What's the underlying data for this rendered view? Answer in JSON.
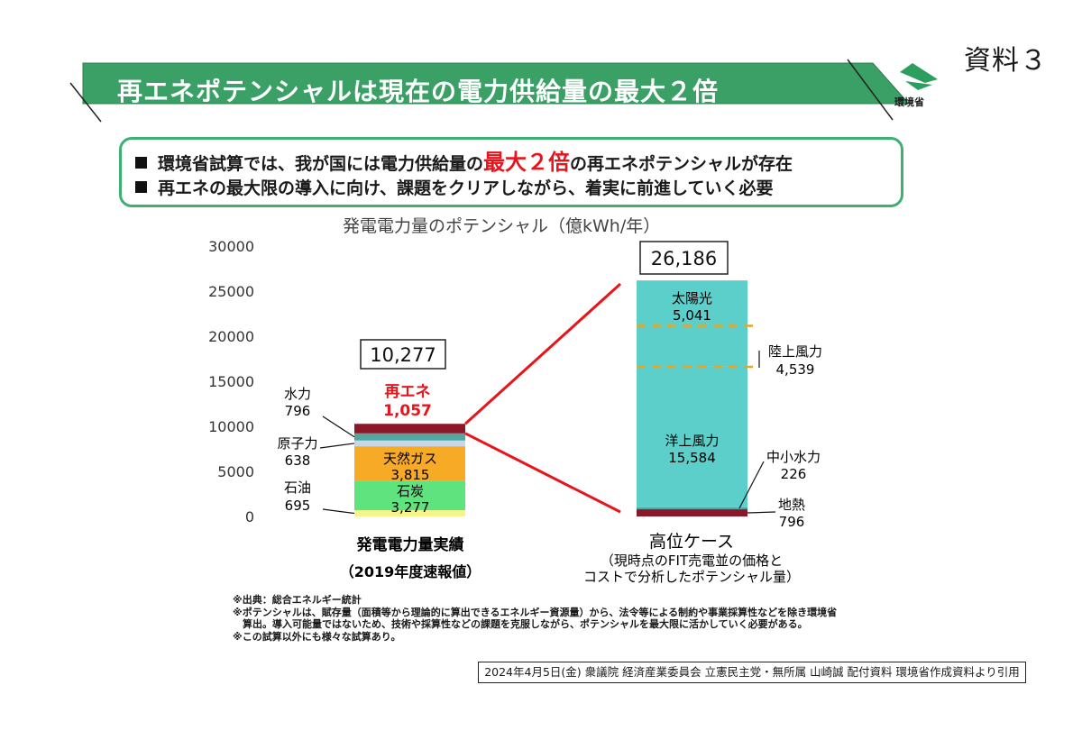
{
  "doc_label": "資料３",
  "title": "再エネポテンシャルは現在の電力供給量の最大２倍",
  "logo": {
    "name": "環境省"
  },
  "summary": {
    "line1_pre": "環境省試算では、我が国には電力供給量の",
    "line1_hl": "最大２倍",
    "line1_post": "の再エネポテンシャルが存在",
    "line2": "再エネの最大限の導入に向け、課題をクリアしながら、着実に前進していく必要"
  },
  "colors": {
    "banner": "#3aa066",
    "highlight": "#e8141b"
  },
  "chart_data": {
    "type": "bar",
    "title": "発電電力量のポテンシャル（億kWh/年）",
    "ylim": [
      0,
      30000
    ],
    "yticks": [
      "30000",
      "25000",
      "20000",
      "15000",
      "10000",
      "5000",
      "0"
    ],
    "categories": [
      "発電電力量実績",
      "高位ケース"
    ],
    "category_sublabels": [
      "（2019年度速報値）",
      "（現時点のFIT売電並の価格と",
      "コストで分析したポテンシャル量）"
    ],
    "totals": [
      "10,277",
      "26,186"
    ],
    "bars": [
      {
        "segments": [
          {
            "name": "石油",
            "value": 695,
            "label": "695",
            "color": "#f5f58a"
          },
          {
            "name": "石炭",
            "value": 3277,
            "label": "3,277",
            "color": "#5ee37e"
          },
          {
            "name": "天然ガス",
            "value": 3815,
            "label": "3,815",
            "color": "#f7aa25"
          },
          {
            "name": "原子力",
            "value": 638,
            "label": "638",
            "color": "#c9d6ea"
          },
          {
            "name": "水力",
            "value": 796,
            "label": "796",
            "color": "#52a6a2"
          },
          {
            "name": "再エネ",
            "value": 1057,
            "label": "1,057",
            "color": "#8a1828"
          }
        ]
      },
      {
        "segments": [
          {
            "name": "地熱",
            "value": 796,
            "label": "796",
            "color": "#8a1828"
          },
          {
            "name": "中小水力",
            "value": 226,
            "label": "226",
            "color": "#52a6a2"
          },
          {
            "name": "洋上風力",
            "value": 15584,
            "label": "15,584",
            "color": "#5ccfca"
          },
          {
            "name": "陸上風力",
            "value": 4539,
            "label": "4,539",
            "color": "#5ccfca"
          },
          {
            "name": "太陽光",
            "value": 5041,
            "label": "5,041",
            "color": "#5ccfca"
          }
        ]
      }
    ]
  },
  "notes": [
    "※出典：総合エネルギー統計",
    "※ポテンシャルは、賦存量（面積等から理論的に算出できるエネルギー資源量）から、法令等による制約や事業採算性などを除き環境省",
    "　算出。導入可能量ではないため、技術や採算性などの課題を克服しながら、ポテンシャルを最大限に活かしていく必要がある。",
    "※この試算以外にも様々な試算あり。"
  ],
  "source_citation": "2024年4月5日(金) 衆議院 経済産業委員会 立憲民主党・無所属 山崎誠 配付資料 環境省作成資料より引用"
}
